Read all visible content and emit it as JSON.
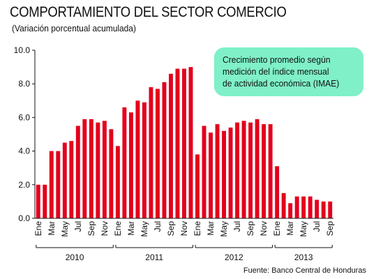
{
  "chart_data": {
    "type": "bar",
    "title": "COMPORTAMIENTO DEL SECTOR COMERCIO",
    "subtitle": "(Variación porcentual acumulada)",
    "ylim": [
      0,
      10
    ],
    "yticks": [
      "0.0",
      "2.0",
      "4.0",
      "6.0",
      "8.0",
      "10.0"
    ],
    "grid": false,
    "bar_color": "#e3001b",
    "x_tick_labels": [
      "Ene",
      "Mar",
      "May",
      "Jul",
      "Sep",
      "Nov",
      "Ene",
      "Mar",
      "May",
      "Jul",
      "Sep",
      "Nov",
      "Ene",
      "Mar",
      "May",
      "Jul",
      "Sep",
      "Nov",
      "Ene",
      "Mar",
      "May",
      "Jul",
      "Sep"
    ],
    "years": [
      {
        "label": "2010",
        "months": 12
      },
      {
        "label": "2011",
        "months": 12
      },
      {
        "label": "2012",
        "months": 12
      },
      {
        "label": "2013",
        "months": 9
      }
    ],
    "values": [
      2.0,
      2.0,
      4.0,
      4.0,
      4.5,
      4.6,
      5.5,
      5.9,
      5.9,
      5.7,
      5.8,
      5.3,
      4.3,
      6.6,
      6.3,
      7.0,
      6.9,
      7.8,
      7.7,
      8.1,
      8.6,
      8.9,
      8.9,
      9.0,
      3.8,
      5.5,
      5.1,
      5.6,
      5.2,
      5.4,
      5.7,
      5.8,
      5.7,
      5.9,
      5.6,
      5.6,
      3.1,
      1.5,
      0.9,
      1.3,
      1.3,
      1.3,
      1.1,
      1.0,
      1.0
    ],
    "annotation": [
      "Crecimiento promedio según",
      "medición del índice mensual",
      "de actividad económica (IMAE)"
    ],
    "source": "Fuente: Banco Central de Honduras"
  }
}
